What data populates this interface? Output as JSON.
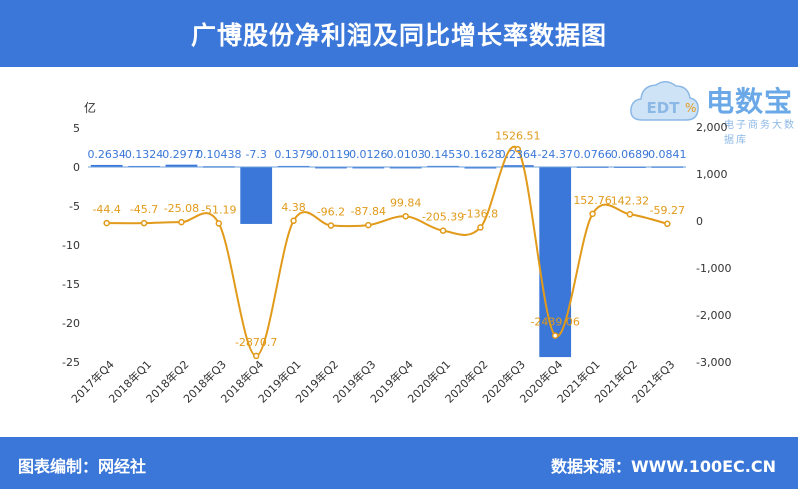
{
  "header": {
    "title": "广博股份净利润及同比增长率数据图"
  },
  "footer": {
    "left": "图表编制：网经社",
    "right": "数据来源：WWW.100EC.CN"
  },
  "logo": {
    "name": "电数宝",
    "sub": "电子商务大数据库",
    "mark": "EDT"
  },
  "colors": {
    "bar": "#3a77d8",
    "line": "#e19a1a",
    "header": "#3a77d8",
    "axis_text": "#333333"
  },
  "chart_data": {
    "type": "bar+line",
    "categories": [
      "2017年Q4",
      "2018年Q1",
      "2018年Q2",
      "2018年Q3",
      "2018年Q4",
      "2019年Q1",
      "2019年Q2",
      "2019年Q3",
      "2019年Q4",
      "2020年Q1",
      "2020年Q2",
      "2020年Q3",
      "2020年Q4",
      "2021年Q1",
      "2021年Q2",
      "2021年Q3"
    ],
    "series": [
      {
        "name": "",
        "type": "bar",
        "axis": "left",
        "values": [
          0.2634,
          0.1324,
          0.2977,
          0.10438,
          -7.3,
          0.1379,
          0.0119,
          0.0126,
          0.0103,
          0.1453,
          -0.1628,
          0.2364,
          -24.37,
          0.0766,
          0.0689,
          0.0841
        ],
        "labels": [
          "0.2634",
          "0.1324",
          "0.2977",
          "0.10438",
          "-7.3",
          "0.1379",
          "0.0119",
          "0.0126",
          "0.0103",
          "0.1453",
          "-0.1628",
          "0.2364",
          "-24.37",
          "0.0766",
          "0.0689",
          "0.0841"
        ]
      },
      {
        "name": "",
        "type": "line",
        "axis": "right",
        "values": [
          -44.4,
          -45.7,
          -25.08,
          -51.19,
          -2870.7,
          4.38,
          -96.2,
          -87.84,
          99.84,
          -205.39,
          -136.8,
          1526.51,
          -2439.06,
          152.76,
          142.32,
          -59.27
        ],
        "labels": [
          "-44.4",
          "-45.7",
          "-25.08",
          "-51.19",
          "-2870.7",
          "4.38",
          "-96.2",
          "-87.84",
          "99.84",
          "-205.39",
          "-136.8",
          "1526.51",
          "-2439.06",
          "152.76",
          "142.32",
          "-59.27"
        ]
      }
    ],
    "left_axis": {
      "title": "亿",
      "range": [
        -28,
        5
      ],
      "ticks": [
        5,
        0,
        -5,
        -10,
        -15,
        -20,
        -25
      ]
    },
    "right_axis": {
      "title": "%",
      "range": [
        -3300,
        2100
      ],
      "ticks": [
        "2,000",
        "1,000",
        "0",
        "-1,000",
        "-2,000",
        "-3,000"
      ],
      "tick_values": [
        2000,
        1000,
        0,
        -1000,
        -2000,
        -3000
      ]
    },
    "grid": false,
    "legend": "none"
  }
}
